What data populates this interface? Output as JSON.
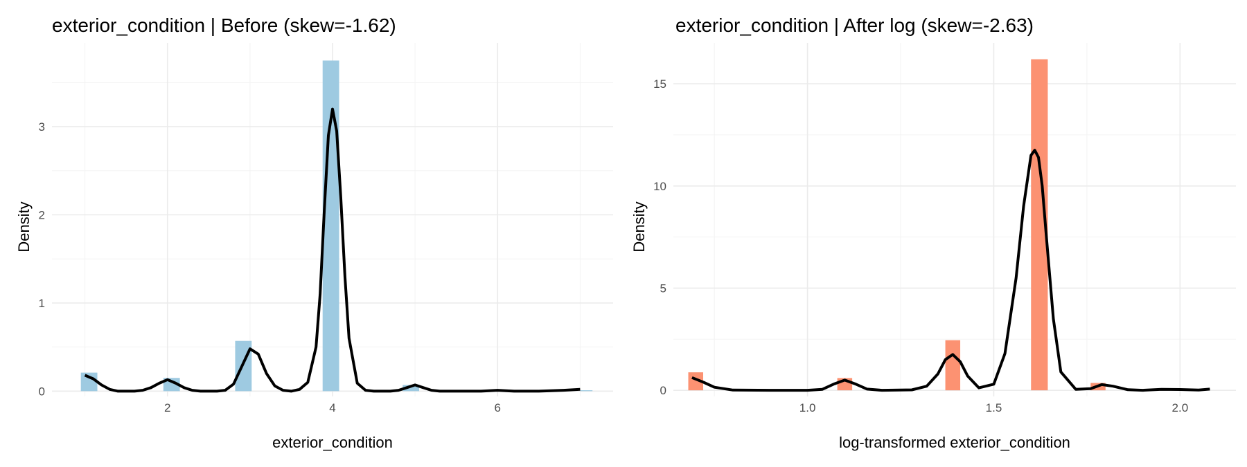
{
  "chart_data": [
    {
      "type": "bar",
      "title": "exterior_condition | Before (skew=-1.62)",
      "xlabel": "exterior_condition",
      "ylabel": "Density",
      "xlim": [
        0.6,
        7.4
      ],
      "ylim": [
        -0.06,
        3.95
      ],
      "x_ticks": [
        2,
        4,
        6
      ],
      "y_ticks": [
        0,
        1,
        2,
        3
      ],
      "grid": true,
      "legend": "none",
      "bar_color": "#9ecae1",
      "bins": [
        {
          "x0": 0.95,
          "x1": 1.15,
          "value": 0.21
        },
        {
          "x0": 1.95,
          "x1": 2.15,
          "value": 0.15
        },
        {
          "x0": 2.82,
          "x1": 3.02,
          "value": 0.57
        },
        {
          "x0": 3.88,
          "x1": 4.08,
          "value": 3.75
        },
        {
          "x0": 4.85,
          "x1": 5.05,
          "value": 0.07
        },
        {
          "x0": 7.0,
          "x1": 7.15,
          "value": 0.01
        }
      ],
      "density": {
        "x": [
          1.0,
          1.1,
          1.2,
          1.3,
          1.4,
          1.5,
          1.6,
          1.7,
          1.8,
          1.9,
          2.0,
          2.1,
          2.2,
          2.3,
          2.4,
          2.5,
          2.6,
          2.7,
          2.8,
          2.9,
          3.0,
          3.1,
          3.2,
          3.3,
          3.4,
          3.5,
          3.6,
          3.7,
          3.8,
          3.85,
          3.9,
          3.95,
          4.0,
          4.05,
          4.1,
          4.15,
          4.2,
          4.3,
          4.4,
          4.5,
          4.6,
          4.7,
          4.8,
          4.9,
          5.0,
          5.1,
          5.2,
          5.3,
          5.5,
          5.8,
          6.0,
          6.2,
          6.5,
          6.8,
          7.0
        ],
        "y": [
          0.18,
          0.14,
          0.07,
          0.02,
          0.0,
          0.0,
          0.0,
          0.01,
          0.04,
          0.09,
          0.13,
          0.09,
          0.04,
          0.01,
          0.0,
          0.0,
          0.0,
          0.01,
          0.08,
          0.28,
          0.48,
          0.42,
          0.2,
          0.06,
          0.01,
          0.0,
          0.02,
          0.1,
          0.5,
          1.1,
          2.05,
          2.9,
          3.2,
          2.95,
          2.2,
          1.3,
          0.6,
          0.09,
          0.01,
          0.0,
          0.0,
          0.0,
          0.01,
          0.04,
          0.07,
          0.04,
          0.01,
          0.0,
          0.0,
          0.0,
          0.01,
          0.0,
          0.0,
          0.01,
          0.02
        ]
      }
    },
    {
      "type": "bar",
      "title": "exterior_condition | After log (skew=-2.63)",
      "xlabel": "log-transformed exterior_condition",
      "ylabel": "Density",
      "xlim": [
        0.64,
        2.15
      ],
      "ylim": [
        -0.3,
        17.0
      ],
      "x_ticks": [
        1.0,
        1.5,
        2.0
      ],
      "y_ticks": [
        0,
        5,
        10,
        15
      ],
      "grid": true,
      "legend": "none",
      "bar_color": "#fc9272",
      "bins": [
        {
          "x0": 0.68,
          "x1": 0.72,
          "value": 0.88
        },
        {
          "x0": 1.08,
          "x1": 1.12,
          "value": 0.6
        },
        {
          "x0": 1.37,
          "x1": 1.41,
          "value": 2.45
        },
        {
          "x0": 1.6,
          "x1": 1.645,
          "value": 16.2
        },
        {
          "x0": 1.76,
          "x1": 1.8,
          "value": 0.36
        }
      ],
      "density": {
        "x": [
          0.69,
          0.72,
          0.75,
          0.8,
          0.9,
          1.0,
          1.04,
          1.07,
          1.1,
          1.13,
          1.16,
          1.2,
          1.28,
          1.32,
          1.35,
          1.37,
          1.39,
          1.41,
          1.43,
          1.46,
          1.5,
          1.53,
          1.56,
          1.58,
          1.6,
          1.61,
          1.62,
          1.63,
          1.64,
          1.66,
          1.68,
          1.72,
          1.76,
          1.79,
          1.82,
          1.86,
          1.9,
          1.95,
          2.0,
          2.05,
          2.08
        ],
        "y": [
          0.62,
          0.4,
          0.15,
          0.01,
          0.0,
          0.0,
          0.05,
          0.3,
          0.5,
          0.3,
          0.06,
          0.0,
          0.02,
          0.2,
          0.8,
          1.5,
          1.75,
          1.4,
          0.7,
          0.12,
          0.3,
          1.8,
          5.5,
          9.0,
          11.5,
          11.75,
          11.4,
          10.0,
          7.8,
          3.5,
          0.9,
          0.05,
          0.08,
          0.28,
          0.2,
          0.03,
          0.0,
          0.05,
          0.04,
          0.01,
          0.06
        ]
      }
    }
  ]
}
